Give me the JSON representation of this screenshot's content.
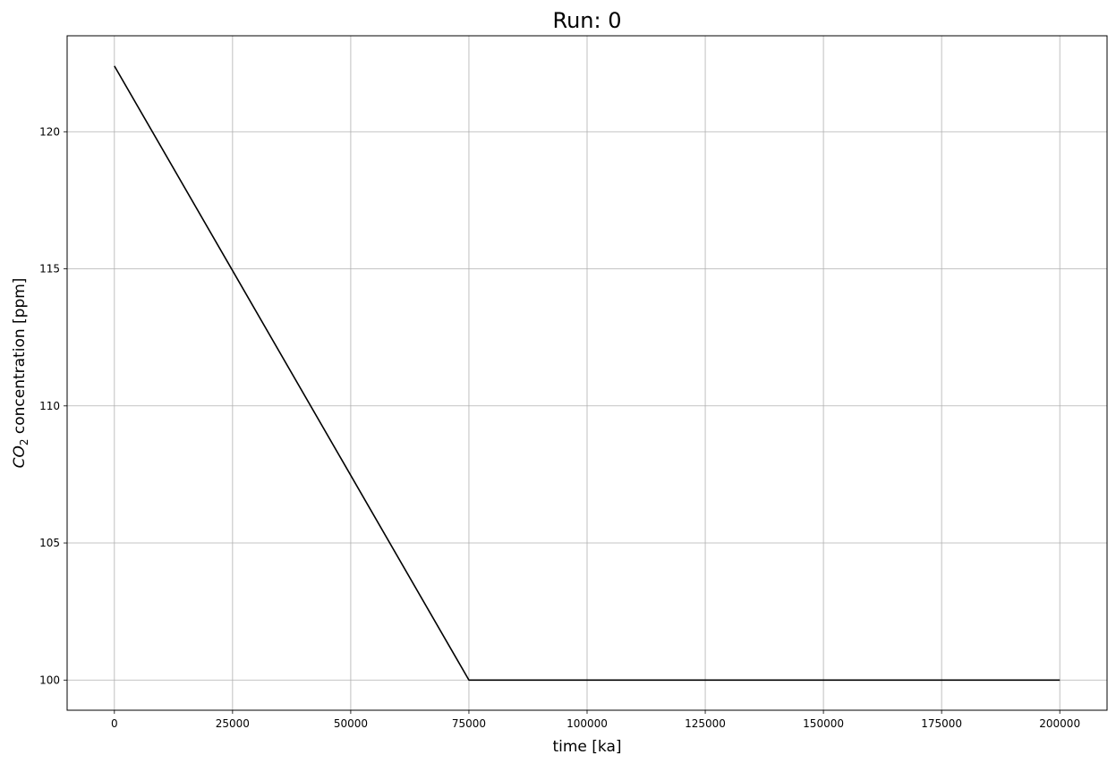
{
  "chart_data": {
    "type": "line",
    "title": "Run: 0",
    "xlabel": "time [ka]",
    "ylabel": {
      "prefix": "CO",
      "subscript": "2",
      "suffix": " concentration [ppm]"
    },
    "xlim": [
      -10000,
      210000
    ],
    "ylim": [
      98.9,
      123.5
    ],
    "x_ticks": [
      0,
      25000,
      50000,
      75000,
      100000,
      125000,
      150000,
      175000,
      200000
    ],
    "x_tick_labels": [
      "0",
      "25000",
      "50000",
      "75000",
      "100000",
      "125000",
      "150000",
      "175000",
      "200000"
    ],
    "y_ticks": [
      100,
      105,
      110,
      115,
      120
    ],
    "y_tick_labels": [
      "100",
      "105",
      "110",
      "115",
      "120"
    ],
    "grid": true,
    "series": [
      {
        "color": "#000000",
        "x": [
          0,
          75000,
          200000
        ],
        "y": [
          122.4,
          100,
          100
        ]
      }
    ]
  }
}
